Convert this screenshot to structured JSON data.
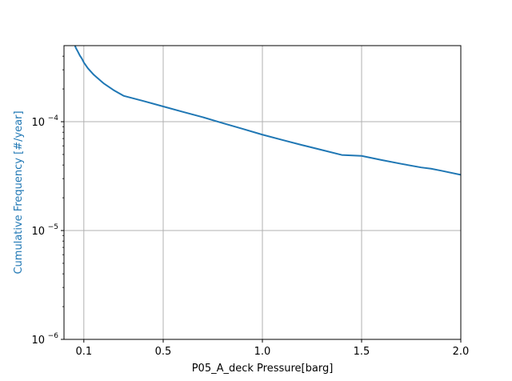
{
  "chart_data": {
    "type": "line",
    "title": "",
    "xlabel": "P05_A_deck Pressure[barg]",
    "ylabel": "Cumulative Frequency [#/year]",
    "xlim": [
      0.0,
      2.0
    ],
    "ylim": [
      1e-06,
      0.0005
    ],
    "yscale": "log",
    "grid": true,
    "x_ticks": [
      {
        "value": 0.1,
        "label": "0.1"
      },
      {
        "value": 0.5,
        "label": "0.5"
      },
      {
        "value": 1.0,
        "label": "1.0"
      },
      {
        "value": 1.5,
        "label": "1.5"
      },
      {
        "value": 2.0,
        "label": "2.0"
      }
    ],
    "y_ticks": [
      {
        "value": 1e-06,
        "base": "10",
        "exp": "−6"
      },
      {
        "value": 1e-05,
        "base": "10",
        "exp": "−5"
      },
      {
        "value": 0.0001,
        "base": "10",
        "exp": "−4"
      }
    ],
    "colors": {
      "series": "#1f77b4",
      "ylabel": "#1f77b4",
      "grid": "#b0b0b0"
    },
    "series": [
      {
        "x": [
          0.05,
          0.06,
          0.07,
          0.08,
          0.09,
          0.1,
          0.12,
          0.15,
          0.2,
          0.25,
          0.3,
          0.4,
          0.5,
          0.6,
          0.7,
          0.8,
          0.9,
          1.0,
          1.1,
          1.2,
          1.3,
          1.4,
          1.5,
          1.6,
          1.7,
          1.8,
          1.85,
          1.9,
          2.0
        ],
        "y": [
          0.00053,
          0.000475,
          0.00044,
          0.000405,
          0.00038,
          0.00035,
          0.00031,
          0.00027,
          0.000225,
          0.000195,
          0.000173,
          0.000155,
          0.000138,
          0.000123,
          0.00011,
          9.7e-05,
          8.6e-05,
          7.6e-05,
          6.8e-05,
          6.1e-05,
          5.5e-05,
          4.95e-05,
          4.85e-05,
          4.45e-05,
          4.1e-05,
          3.8e-05,
          3.7e-05,
          3.55e-05,
          3.25e-05
        ]
      }
    ]
  }
}
